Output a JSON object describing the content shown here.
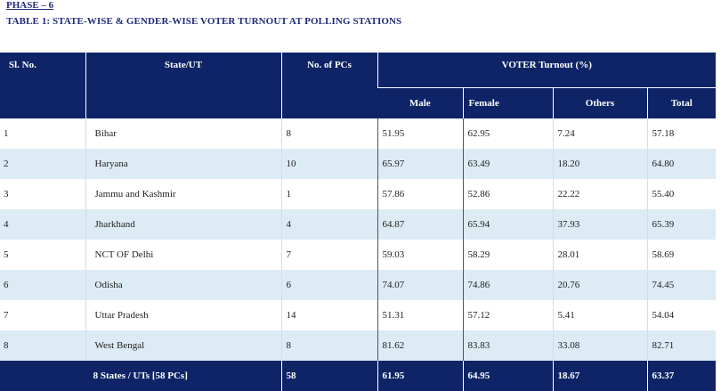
{
  "phase_label": "PHASE – 6",
  "table_title": "TABLE 1: STATE-WISE & GENDER-WISE VOTER TURNOUT AT POLLING STATIONS",
  "headers": {
    "sl_no": "Sl. No.",
    "state": "State/UT",
    "pcs": "No. of PCs",
    "turnout": "VOTER Turnout (%)",
    "male": "Male",
    "female": "Female",
    "others": "Others",
    "total": "Total"
  },
  "rows": [
    {
      "sl": "1",
      "state": "Bihar",
      "pcs": "8",
      "male": "51.95",
      "female": "62.95",
      "others": "7.24",
      "total": "57.18"
    },
    {
      "sl": "2",
      "state": "Haryana",
      "pcs": "10",
      "male": "65.97",
      "female": "63.49",
      "others": "18.20",
      "total": "64.80"
    },
    {
      "sl": "3",
      "state": "Jammu and Kashmir",
      "pcs": "1",
      "male": "57.86",
      "female": "52.86",
      "others": "22.22",
      "total": "55.40"
    },
    {
      "sl": "4",
      "state": "Jharkhand",
      "pcs": "4",
      "male": "64.87",
      "female": "65.94",
      "others": "37.93",
      "total": "65.39"
    },
    {
      "sl": "5",
      "state": "NCT OF Delhi",
      "pcs": "7",
      "male": "59.03",
      "female": "58.29",
      "others": "28.01",
      "total": "58.69"
    },
    {
      "sl": "6",
      "state": "Odisha",
      "pcs": "6",
      "male": "74.07",
      "female": "74.86",
      "others": "20.76",
      "total": "74.45"
    },
    {
      "sl": "7",
      "state": "Uttar Pradesh",
      "pcs": "14",
      "male": "51.31",
      "female": "57.12",
      "others": "5.41",
      "total": "54.04"
    },
    {
      "sl": "8",
      "state": "West Bengal",
      "pcs": "8",
      "male": "81.62",
      "female": "83.83",
      "others": "33.08",
      "total": "82.71"
    }
  ],
  "footer": {
    "label": "8 States / UTs [58 PCs]",
    "pcs": "58",
    "male": "61.95",
    "female": "64.95",
    "others": "18.67",
    "total": "63.37"
  },
  "colors": {
    "header_bg": "#0e2466",
    "row_alt": "#dcebf4",
    "title": "#1f2a7a"
  }
}
